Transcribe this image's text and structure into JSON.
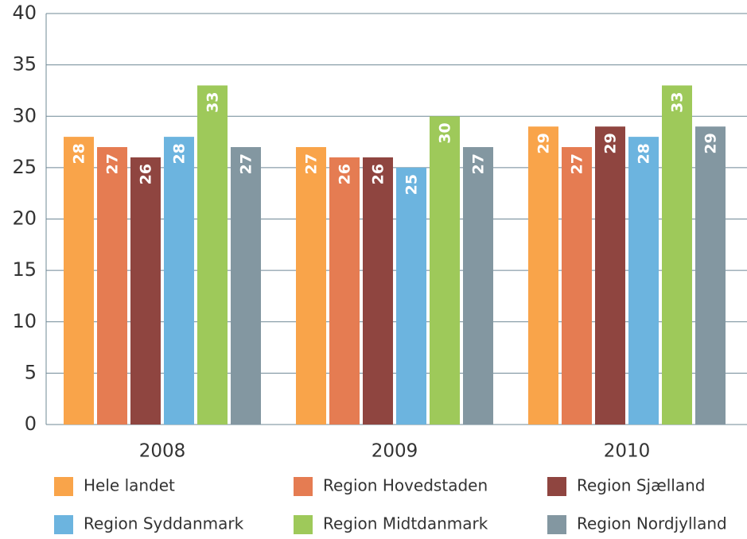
{
  "chart_data": {
    "type": "bar",
    "categories": [
      "2008",
      "2009",
      "2010"
    ],
    "series": [
      {
        "name": "Hele landet",
        "color": "#f9a44a",
        "values": [
          28,
          27,
          29
        ]
      },
      {
        "name": "Region Hovedstaden",
        "color": "#e57c52",
        "values": [
          27,
          26,
          27
        ]
      },
      {
        "name": "Region Sjælland",
        "color": "#8f4540",
        "values": [
          26,
          26,
          29
        ]
      },
      {
        "name": "Region Syddanmark",
        "color": "#6cb4df",
        "values": [
          28,
          25,
          28
        ]
      },
      {
        "name": "Region Midtdanmark",
        "color": "#9ec95a",
        "values": [
          33,
          30,
          33
        ]
      },
      {
        "name": "Region Nordjylland",
        "color": "#8397a1",
        "values": [
          27,
          27,
          29
        ]
      }
    ],
    "ylim": [
      0,
      40
    ],
    "yticks": [
      0,
      5,
      10,
      15,
      20,
      25,
      30,
      35,
      40
    ],
    "grid": true,
    "value_labels_shown": true
  }
}
